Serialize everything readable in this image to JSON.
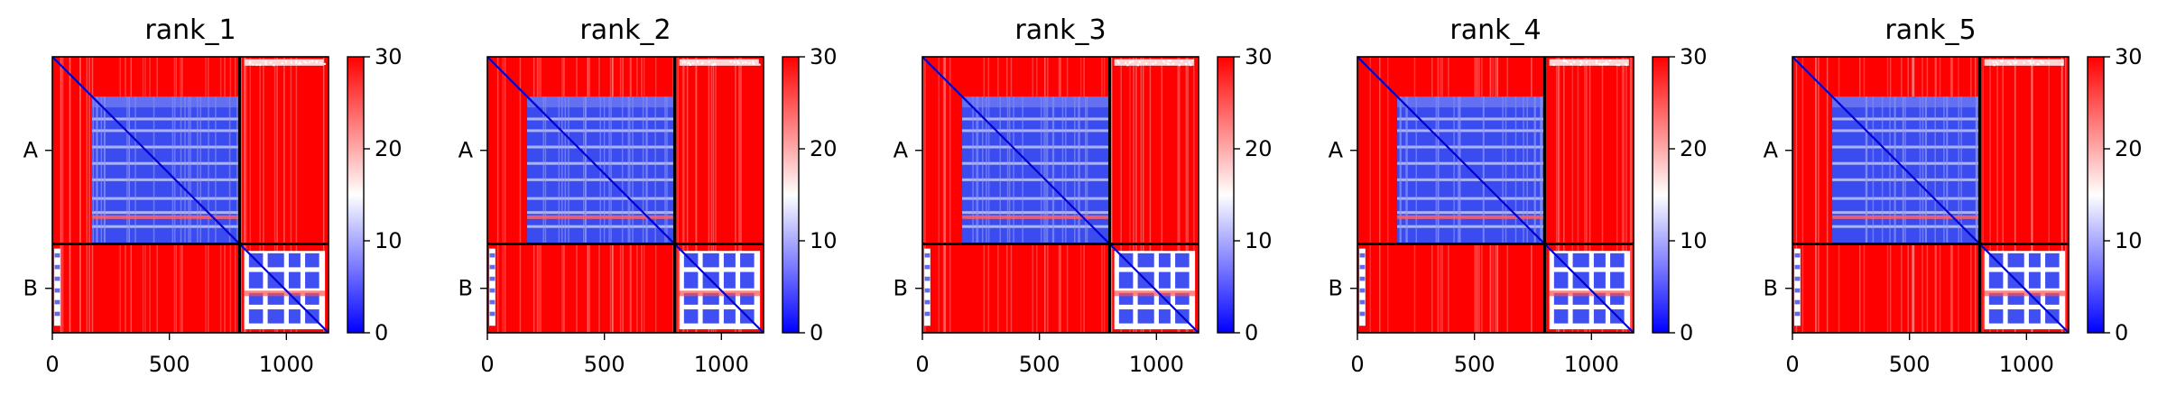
{
  "chart_data": {
    "type": "heatmap",
    "description_panels": "five PAE heatmaps with chain blocks A and B",
    "panels": [
      {
        "title": "rank_1",
        "has_top_noise": true
      },
      {
        "title": "rank_2",
        "has_top_noise": true
      },
      {
        "title": "rank_3",
        "has_top_noise": true
      },
      {
        "title": "rank_4",
        "has_top_noise": true
      },
      {
        "title": "rank_5",
        "has_top_noise": true
      }
    ],
    "x_ticks": [
      0,
      500,
      1000
    ],
    "x_range": [
      0,
      1180
    ],
    "chain_boundary": 800,
    "chains": [
      {
        "label": "A",
        "start": 0,
        "end": 800
      },
      {
        "label": "B",
        "start": 800,
        "end": 1180
      }
    ],
    "colorbar": {
      "ticks": [
        0,
        10,
        20,
        30
      ],
      "range": [
        0,
        30
      ],
      "colormap": "bwr"
    },
    "colors": {
      "low": "#0000ff",
      "mid": "#ffffff",
      "high": "#ff0000",
      "line": "#000000"
    }
  }
}
